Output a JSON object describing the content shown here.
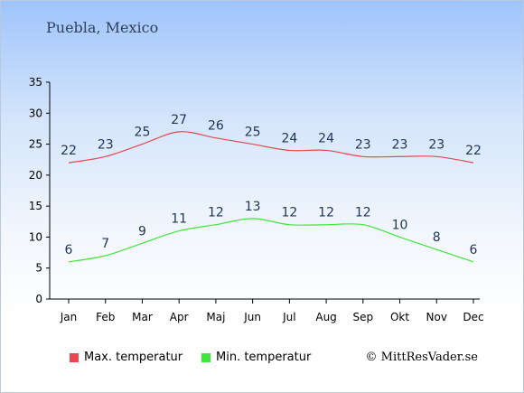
{
  "location": "Puebla, Mexico",
  "copyright": "© MittResVader.se",
  "chart_data": {
    "type": "line",
    "categories": [
      "Jan",
      "Feb",
      "Mar",
      "Apr",
      "Maj",
      "Jun",
      "Jul",
      "Aug",
      "Sep",
      "Okt",
      "Nov",
      "Dec"
    ],
    "series": [
      {
        "name": "Max. temperatur",
        "color": "#e8474f",
        "values": [
          22,
          23,
          25,
          27,
          26,
          25,
          24,
          24,
          23,
          23,
          23,
          22
        ]
      },
      {
        "name": "Min. temperatur",
        "color": "#3ee83a",
        "values": [
          6,
          7,
          9,
          11,
          12,
          13,
          12,
          12,
          12,
          10,
          8,
          6
        ]
      }
    ],
    "ylim": [
      0,
      35
    ],
    "yticks": [
      0,
      5,
      10,
      15,
      20,
      25,
      30,
      35
    ],
    "grid": false,
    "legend": "bottom"
  }
}
